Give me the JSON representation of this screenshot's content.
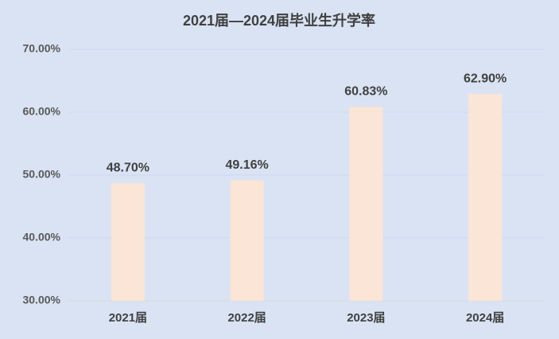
{
  "chart_data": {
    "type": "bar",
    "title": "2021届—2024届毕业生升学率",
    "categories": [
      "2021届",
      "2022届",
      "2023届",
      "2024届"
    ],
    "values": [
      48.7,
      49.16,
      60.83,
      62.9
    ],
    "value_labels": [
      "48.70%",
      "49.16%",
      "60.83%",
      "62.90%"
    ],
    "color": "#fbe5d6",
    "ylim": [
      30,
      70
    ],
    "yticks": [
      {
        "value": 30,
        "label": "30.00%"
      },
      {
        "value": 40,
        "label": "40.00%"
      },
      {
        "value": 50,
        "label": "50.00%"
      },
      {
        "value": 60,
        "label": "60.00%"
      },
      {
        "value": 70,
        "label": "70.00%"
      }
    ],
    "grid": true
  }
}
